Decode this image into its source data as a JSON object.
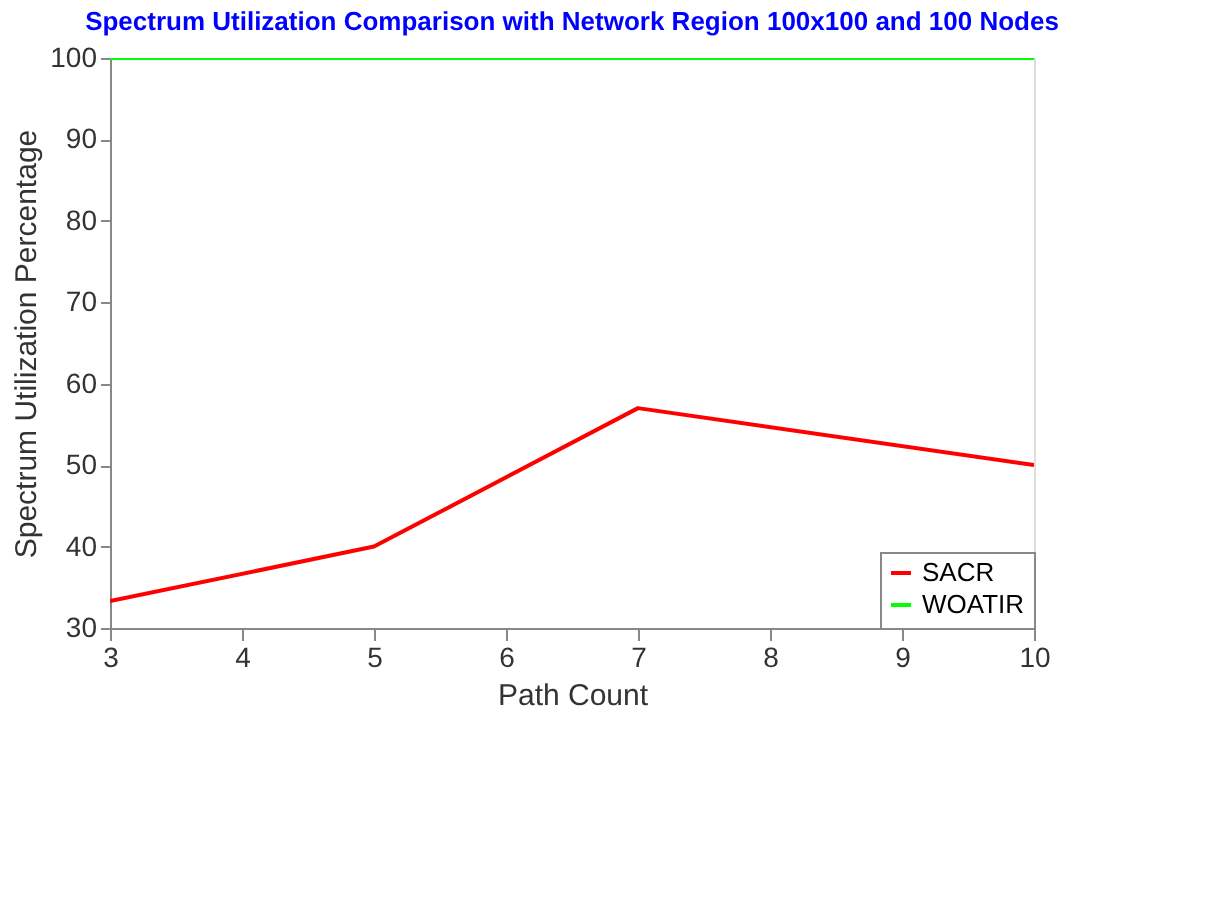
{
  "chart_data": {
    "type": "line",
    "title": "Spectrum Utilization Comparison with Network Region 100x100 and 100 Nodes",
    "xlabel": "Path Count",
    "ylabel": "Spectrum Utilization Percentage",
    "x": [
      3,
      5,
      7,
      10
    ],
    "series": [
      {
        "name": "SACR",
        "color": "#ff0000",
        "values": [
          33.3,
          40,
          57,
          50
        ]
      },
      {
        "name": "WOATIR",
        "color": "#00ff00",
        "values": [
          100,
          100,
          100,
          100
        ]
      }
    ],
    "xlim": [
      3,
      10
    ],
    "xticks": [
      3,
      4,
      5,
      6,
      7,
      8,
      9,
      10
    ],
    "ylim": [
      30,
      100
    ],
    "yticks": [
      30,
      40,
      50,
      60,
      70,
      80,
      90,
      100
    ],
    "grid": false,
    "legend": "bottom right",
    "marker": "none",
    "line_style": "solid"
  }
}
